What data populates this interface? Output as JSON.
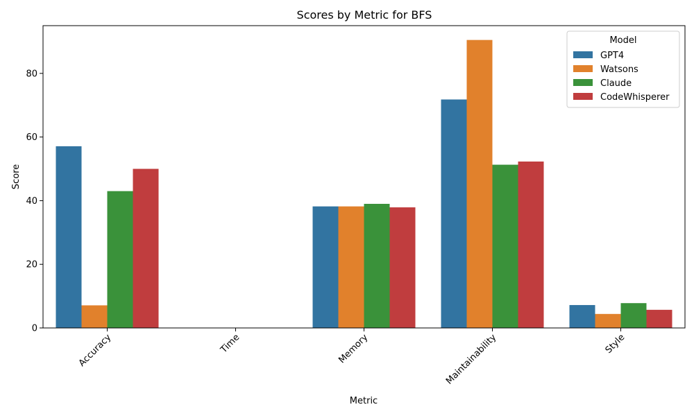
{
  "chart_data": {
    "type": "bar",
    "title": "Scores by Metric for BFS",
    "xlabel": "Metric",
    "ylabel": "Score",
    "categories": [
      "Accuracy",
      "Time",
      "Memory",
      "Maintainability",
      "Style"
    ],
    "ylim": [
      0,
      95
    ],
    "yticks": [
      0,
      20,
      40,
      60,
      80
    ],
    "grid": false,
    "legend": {
      "title": "Model",
      "placement": "top-right"
    },
    "series": [
      {
        "name": "GPT4",
        "color": "#3274a1",
        "values": [
          57.1,
          0,
          38.2,
          71.8,
          7.2
        ]
      },
      {
        "name": "Watsons",
        "color": "#e1812c",
        "values": [
          7.1,
          0,
          38.2,
          90.5,
          4.4
        ]
      },
      {
        "name": "Claude",
        "color": "#3a923a",
        "values": [
          43.0,
          0,
          39.0,
          51.3,
          7.8
        ]
      },
      {
        "name": "CodeWhisperer",
        "color": "#c03d3e",
        "values": [
          50.0,
          0,
          37.9,
          52.3,
          5.7
        ]
      }
    ]
  }
}
